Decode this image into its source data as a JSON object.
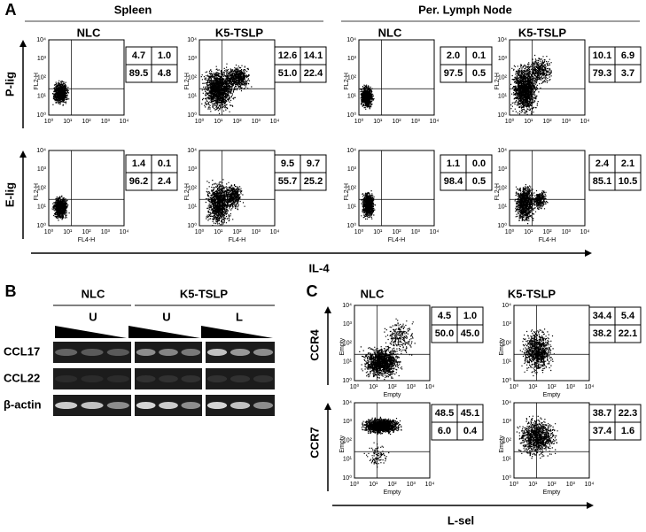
{
  "panel_a": {
    "letter": "A",
    "groups": [
      "Spleen",
      "Per. Lymph Node"
    ],
    "columns": [
      "NLC",
      "K5-TSLP",
      "NLC",
      "K5-TSLP"
    ],
    "rows": [
      "P-lig",
      "E-lig"
    ],
    "x_axis": "IL-4",
    "plot_x_label": "FL4-H",
    "plot_y_label": "FL2-H",
    "quadrants": [
      [
        [
          "4.7",
          "1.0",
          "89.5",
          "4.8"
        ],
        [
          "12.6",
          "14.1",
          "51.0",
          "22.4"
        ],
        [
          "2.0",
          "0.1",
          "97.5",
          "0.5"
        ],
        [
          "10.1",
          "6.9",
          "79.3",
          "3.7"
        ]
      ],
      [
        [
          "1.4",
          "0.1",
          "96.2",
          "2.4"
        ],
        [
          "9.5",
          "9.7",
          "55.7",
          "25.2"
        ],
        [
          "1.1",
          "0.0",
          "98.4",
          "0.5"
        ],
        [
          "2.4",
          "2.1",
          "85.1",
          "10.5"
        ]
      ]
    ]
  },
  "axis_ticks": [
    "10⁰",
    "10¹",
    "10²",
    "10³",
    "10⁴"
  ],
  "panel_b": {
    "letter": "B",
    "groups": [
      "NLC",
      "K5-TSLP"
    ],
    "lanes": [
      "U",
      "U",
      "L"
    ],
    "genes": [
      "CCL17",
      "CCL22",
      "β-actin"
    ]
  },
  "panel_c": {
    "letter": "C",
    "columns": [
      "NLC",
      "K5-TSLP"
    ],
    "rows": [
      "CCR4",
      "CCR7"
    ],
    "x_axis": "L-sel",
    "plot_x_label": "Empty",
    "plot_y_label": "Empty",
    "quadrants": [
      [
        [
          "4.5",
          "1.0",
          "50.0",
          "45.0"
        ],
        [
          "34.4",
          "5.4",
          "38.2",
          "22.1"
        ]
      ],
      [
        [
          "48.5",
          "45.1",
          "6.0",
          "0.4"
        ],
        [
          "38.7",
          "22.3",
          "37.4",
          "1.6"
        ]
      ]
    ]
  }
}
